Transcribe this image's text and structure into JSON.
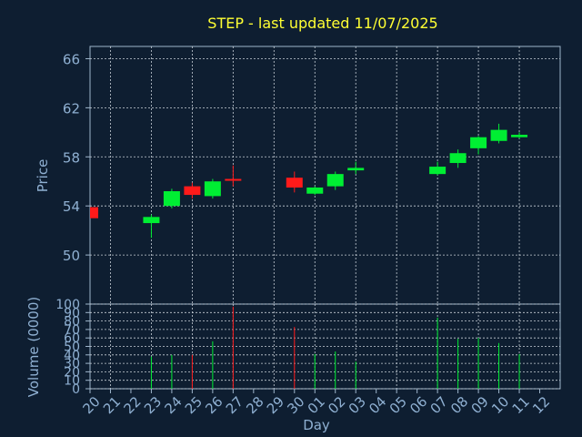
{
  "chart_data": [
    {
      "type": "candlestick",
      "title": "STEP - last updated 11/07/2025",
      "ylabel": "Price",
      "ylim": [
        46,
        67
      ],
      "yticks": [
        50,
        54,
        58,
        62,
        66
      ],
      "grid": true,
      "x_range": [
        20,
        43
      ],
      "candles": [
        {
          "x": 20,
          "open": 53.9,
          "high": 53.9,
          "low": 53.0,
          "close": 53.0
        },
        {
          "x": 23,
          "open": 52.6,
          "high": 53.3,
          "low": 51.4,
          "close": 53.1
        },
        {
          "x": 24,
          "open": 54.0,
          "high": 55.4,
          "low": 53.8,
          "close": 55.2
        },
        {
          "x": 25,
          "open": 55.6,
          "high": 55.9,
          "low": 54.6,
          "close": 54.9
        },
        {
          "x": 26,
          "open": 54.8,
          "high": 56.2,
          "low": 54.6,
          "close": 56.0
        },
        {
          "x": 27,
          "open": 56.2,
          "high": 57.3,
          "low": 55.6,
          "close": 56.1
        },
        {
          "x": 30,
          "open": 56.3,
          "high": 56.8,
          "low": 55.1,
          "close": 55.5
        },
        {
          "x": 31,
          "open": 55.0,
          "high": 55.6,
          "low": 54.9,
          "close": 55.5
        },
        {
          "x": 32,
          "open": 55.6,
          "high": 56.8,
          "low": 55.3,
          "close": 56.6
        },
        {
          "x": 33,
          "open": 56.9,
          "high": 57.6,
          "low": 56.6,
          "close": 57.1
        },
        {
          "x": 37,
          "open": 56.6,
          "high": 57.6,
          "low": 56.5,
          "close": 57.2
        },
        {
          "x": 38,
          "open": 57.5,
          "high": 58.6,
          "low": 57.1,
          "close": 58.3
        },
        {
          "x": 39,
          "open": 58.7,
          "high": 59.7,
          "low": 58.2,
          "close": 59.6
        },
        {
          "x": 40,
          "open": 59.3,
          "high": 60.7,
          "low": 59.1,
          "close": 60.2
        },
        {
          "x": 41,
          "open": 59.6,
          "high": 60.0,
          "low": 59.5,
          "close": 59.8
        }
      ]
    },
    {
      "type": "bar",
      "ylabel": "Volume (0000)",
      "xlabel": "Day",
      "ylim": [
        0,
        100
      ],
      "yticks": [
        0,
        10,
        20,
        30,
        40,
        50,
        60,
        70,
        80,
        90,
        100
      ],
      "grid": true,
      "x_range": [
        20,
        43
      ],
      "xtick_labels": [
        "20",
        "21",
        "22",
        "23",
        "24",
        "25",
        "26",
        "27",
        "28",
        "29",
        "30",
        "01",
        "02",
        "03",
        "04",
        "05",
        "06",
        "07",
        "08",
        "09",
        "10",
        "11",
        "12"
      ],
      "bars": [
        {
          "x": 23,
          "value": 38,
          "dir": "up"
        },
        {
          "x": 24,
          "value": 40,
          "dir": "up"
        },
        {
          "x": 25,
          "value": 40,
          "dir": "down"
        },
        {
          "x": 26,
          "value": 56,
          "dir": "up"
        },
        {
          "x": 27,
          "value": 97,
          "dir": "down"
        },
        {
          "x": 30,
          "value": 73,
          "dir": "down"
        },
        {
          "x": 31,
          "value": 41,
          "dir": "up"
        },
        {
          "x": 32,
          "value": 44,
          "dir": "up"
        },
        {
          "x": 33,
          "value": 32,
          "dir": "up"
        },
        {
          "x": 37,
          "value": 84,
          "dir": "up"
        },
        {
          "x": 38,
          "value": 59,
          "dir": "up"
        },
        {
          "x": 39,
          "value": 60,
          "dir": "up"
        },
        {
          "x": 40,
          "value": 54,
          "dir": "up"
        },
        {
          "x": 41,
          "value": 41,
          "dir": "up"
        }
      ]
    }
  ],
  "colors": {
    "background": "#0e1e31",
    "axis": "#9fb6cc",
    "text": "#8fb0d2",
    "title": "#ffff33",
    "grid": "#c8d0d8",
    "up": "#00ee33",
    "down": "#ff1a1a"
  }
}
